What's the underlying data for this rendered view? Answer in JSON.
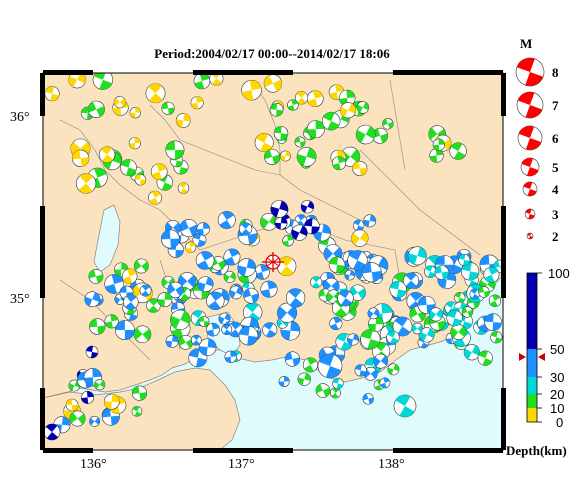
{
  "title": "Period:2004/02/17 00:00--2014/02/17 18:06",
  "map": {
    "lon_ticks": [
      {
        "value": 136,
        "label": "136°"
      },
      {
        "value": 137,
        "label": "137°"
      },
      {
        "value": 138,
        "label": "138°"
      }
    ],
    "lat_ticks": [
      {
        "value": 36,
        "label": "36°"
      },
      {
        "value": 35,
        "label": "35°"
      }
    ],
    "land_color": "#fbe3bf",
    "sea_color": "#e0fbfb",
    "epicenter_marker": "red-star"
  },
  "magnitude_legend": {
    "title": "M",
    "items": [
      "8",
      "7",
      "6",
      "5",
      "4",
      "3",
      "2"
    ]
  },
  "depth_scale": {
    "label": "Depth(km)",
    "ticks": [
      "100",
      "50",
      "30",
      "20",
      "10",
      "0"
    ],
    "marker_value": 47,
    "colors": [
      {
        "range": "0-10",
        "color": "#ffd700"
      },
      {
        "range": "10-20",
        "color": "#22dd22"
      },
      {
        "range": "20-30",
        "color": "#00d8d8"
      },
      {
        "range": "30-50",
        "color": "#1e90ff"
      },
      {
        "range": "50-100",
        "color": "#0000b0"
      }
    ]
  }
}
